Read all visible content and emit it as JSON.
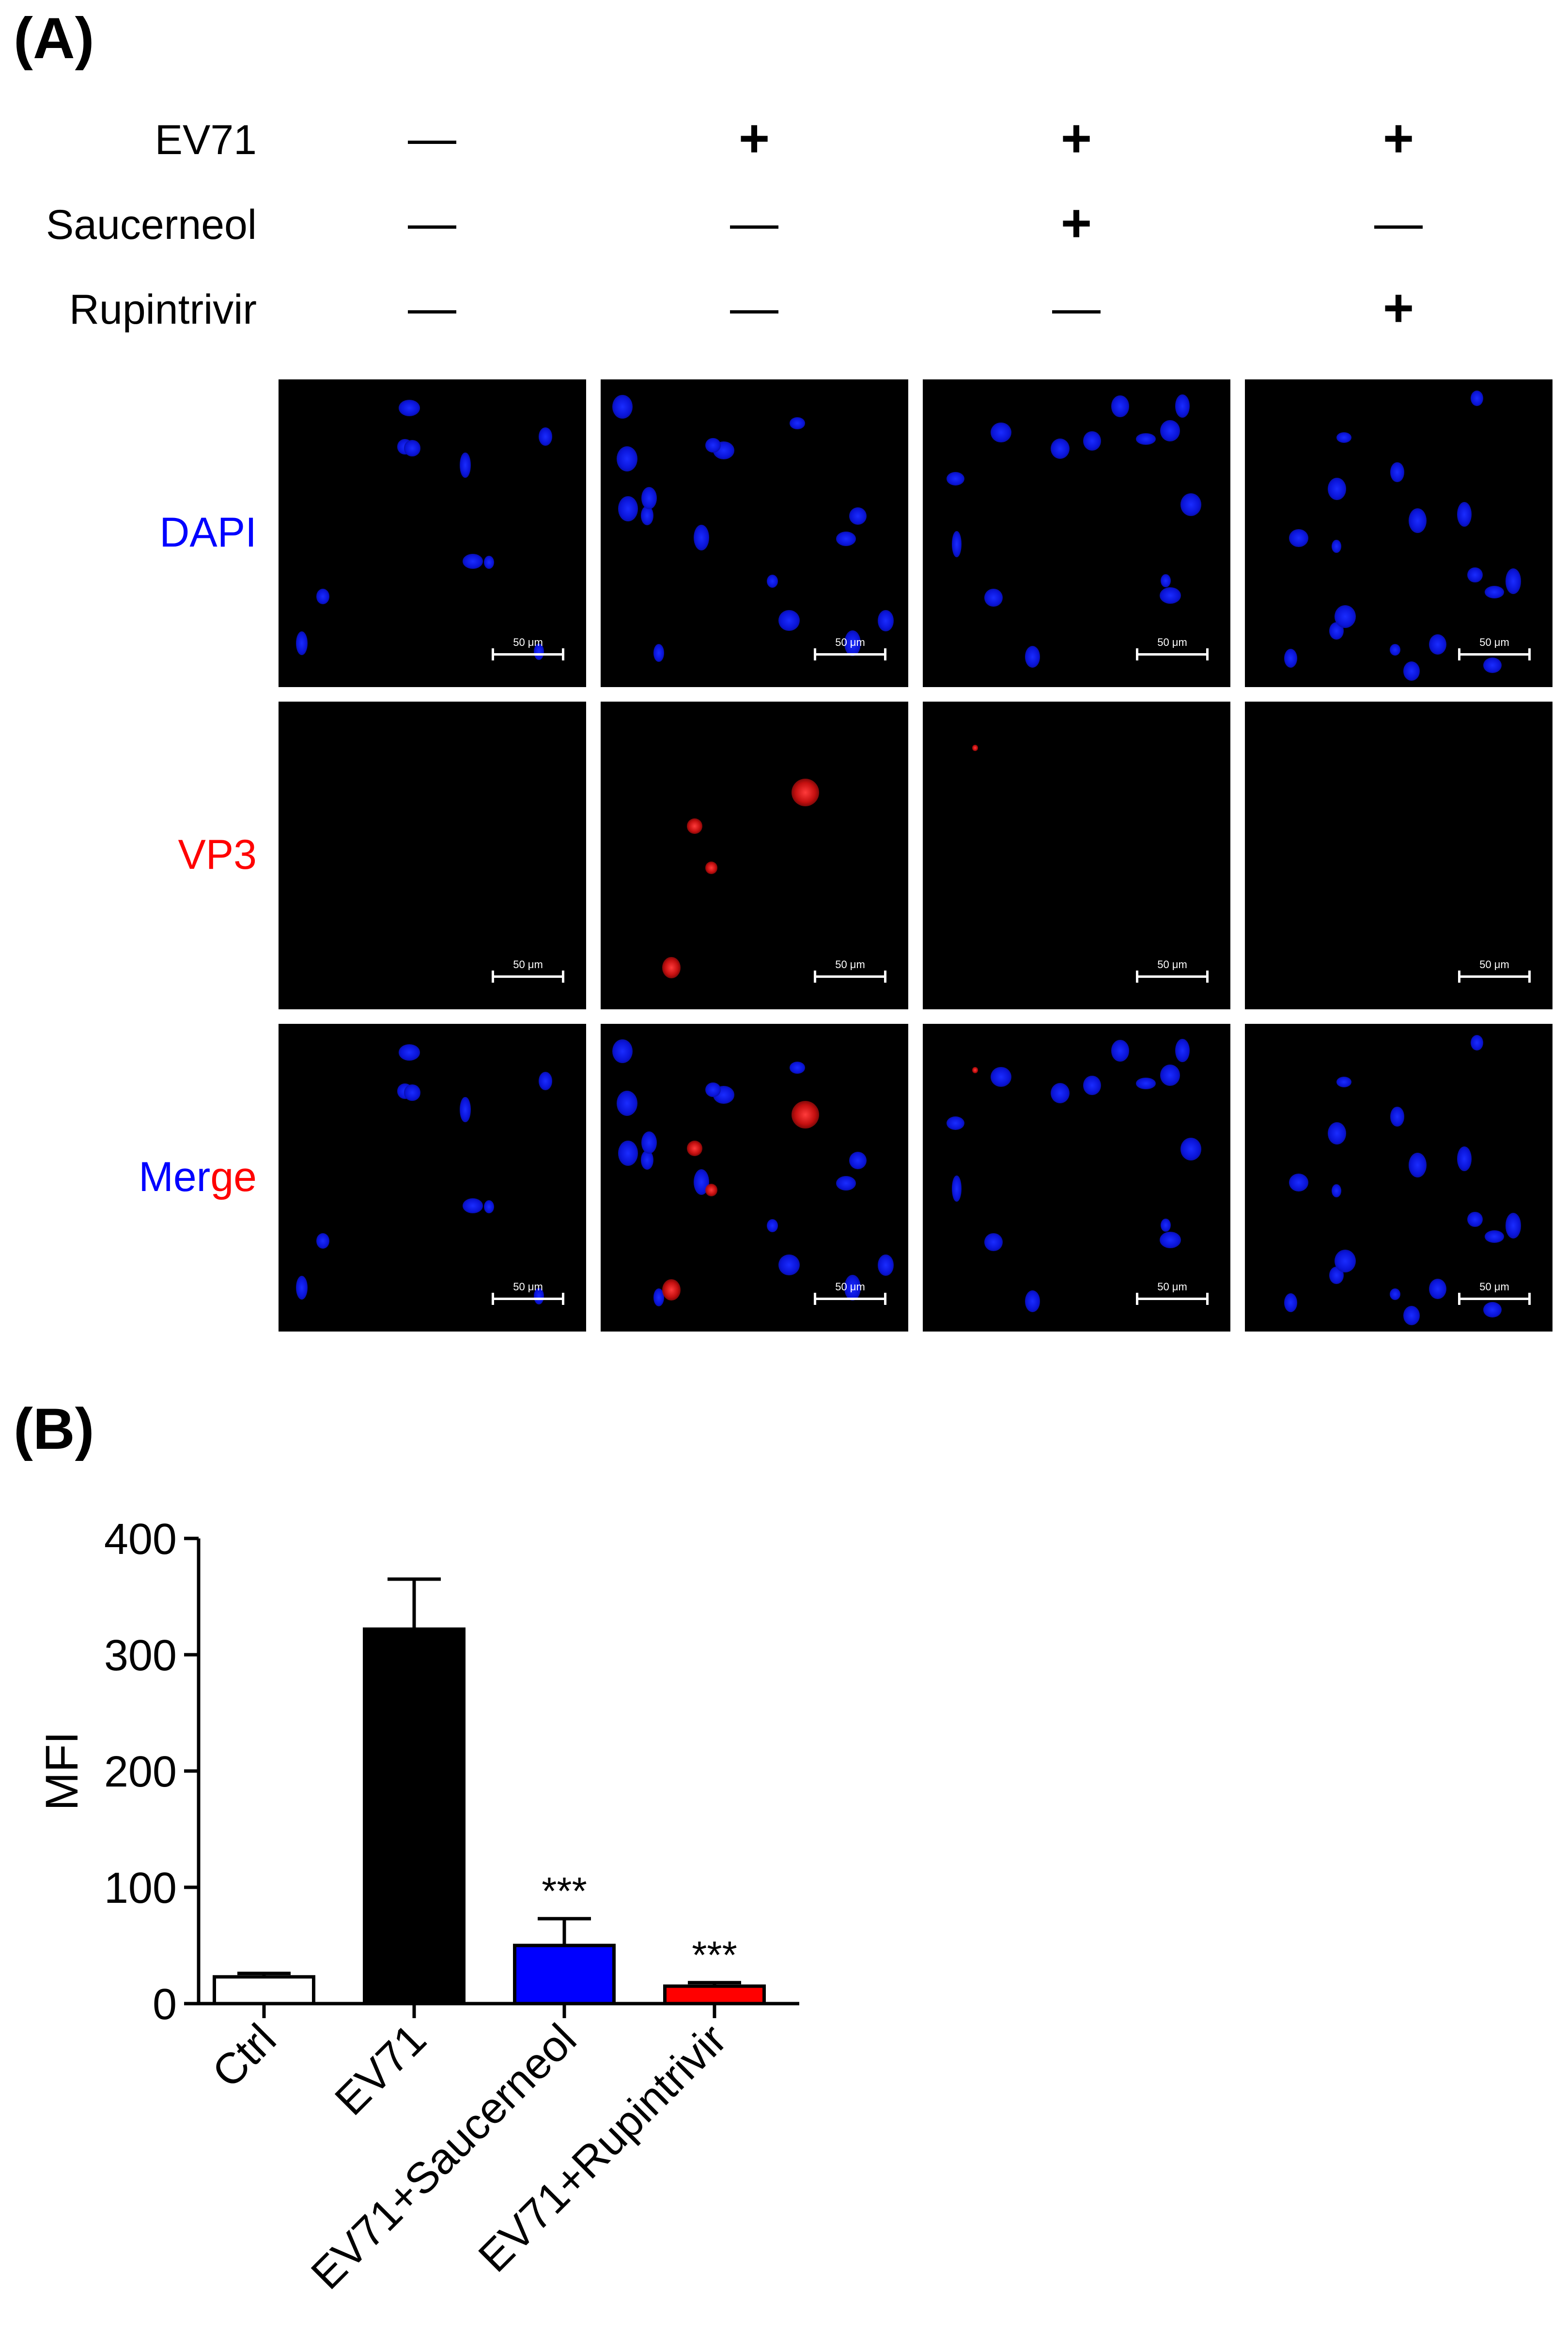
{
  "panel_a": {
    "label": "(A)",
    "treatments": [
      {
        "name": "EV71",
        "signs": [
          "—",
          "+",
          "+",
          "+"
        ]
      },
      {
        "name": "Saucerneol",
        "signs": [
          "—",
          "—",
          "+",
          "—"
        ]
      },
      {
        "name": "Rupintrivir",
        "signs": [
          "—",
          "—",
          "—",
          "+"
        ]
      }
    ],
    "stains": {
      "dapi": "DAPI",
      "vp3": "VP3",
      "merge_1": "Mer",
      "merge_2": "ge"
    },
    "scale_bar_text": "50 μm",
    "colors": {
      "dapi": "#0000ff",
      "vp3": "#ff0000"
    }
  },
  "panel_b": {
    "label": "(B)",
    "chart_data": {
      "type": "bar",
      "categories": [
        "Ctrl",
        "EV71",
        "EV71+Saucerneol",
        "EV71+Rupintrivir"
      ],
      "values": [
        23,
        322,
        50,
        15
      ],
      "errors": [
        3,
        43,
        23,
        3
      ],
      "significance": [
        "",
        "",
        "***",
        "***"
      ],
      "bar_colors": [
        "#ffffff",
        "#000000",
        "#0000ff",
        "#ff0000"
      ],
      "xlabel": "",
      "ylabel": "MFI",
      "ylim": [
        0,
        400
      ],
      "yticks": [
        "0",
        "100",
        "200",
        "300",
        "400"
      ]
    }
  }
}
